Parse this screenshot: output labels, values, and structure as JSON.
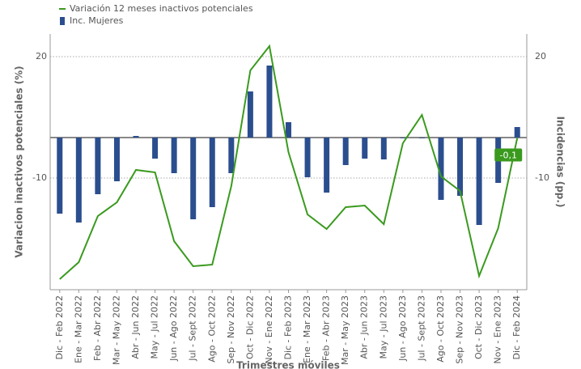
{
  "chart_data": {
    "type": "bar+line",
    "categories": [
      "Dic - Feb 2022",
      "Ene - Mar 2022",
      "Feb - Abr 2022",
      "Mar - May 2022",
      "Abr - Jun 2022",
      "May - Jul 2022",
      "Jun - Ago 2022",
      "Jul - Sept 2022",
      "Ago - Oct 2022",
      "Sep - Nov 2022",
      "Oct - Dic 2022",
      "Nov - Ene 2022",
      "Dic - Feb 2023",
      "Ene - Mar 2023",
      "Feb - Abr 2023",
      "Mar - May 2023",
      "Abr - Jun 2023",
      "May - Jul 2023",
      "Jun - Ago 2023",
      "Jul - Sept 2023",
      "Ago - Oct 2023",
      "Sep - Nov 2023",
      "Oct - Dic 2023",
      "Nov - Ene 2023",
      "Dic - Feb 2024"
    ],
    "series": [
      {
        "name": "Variación 12 meses inactivos potenciales",
        "type": "line",
        "color": "#3a9a1e",
        "values": [
          -35,
          -30.8,
          -19.4,
          -16,
          -8,
          -8.6,
          -25.6,
          -31.8,
          -31.4,
          -12,
          16.6,
          22.6,
          -3.6,
          -19,
          -22.6,
          -17.2,
          -16.8,
          -21.4,
          -1.4,
          5.6,
          -9.6,
          -13.2,
          -34.2,
          -22.4,
          -0.1
        ],
        "value_labels": [
          null,
          null,
          null,
          null,
          null,
          null,
          null,
          null,
          null,
          null,
          null,
          null,
          null,
          null,
          null,
          null,
          null,
          null,
          null,
          null,
          null,
          null,
          null,
          null,
          "-0,1"
        ]
      },
      {
        "name": "Inc. Mujeres",
        "type": "bar",
        "axis": "y2",
        "color": "#2b4e8e",
        "values": [
          -18.8,
          -21,
          -14,
          -10.8,
          0.4,
          -5.2,
          -8.8,
          -20.2,
          -17.2,
          -8.8,
          11.4,
          17.8,
          3.8,
          -9.8,
          -13.6,
          -6.8,
          -5.2,
          -5.4,
          0,
          -0.1,
          -15.4,
          -14.4,
          -21.6,
          -11.2,
          2.6
        ]
      }
    ],
    "y_label": "Variacion inactivos potenciales (%)",
    "y2_label": "Incidencias (pp.)",
    "x_label": "Trimestres móviles",
    "ylim": [
      -37.6,
      25.6
    ],
    "yticks": [
      -10,
      20
    ],
    "y2lim": [
      -37.6,
      25.6
    ],
    "y2ticks": [
      -10,
      20
    ],
    "grid": true,
    "legend": "top-left"
  }
}
